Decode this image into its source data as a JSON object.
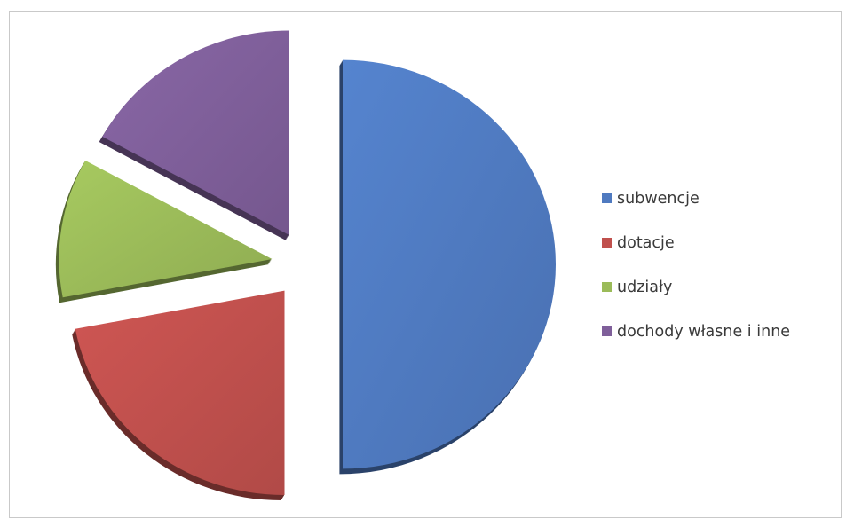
{
  "chart_data": {
    "type": "pie",
    "style": "3d-exploded",
    "categories": [
      "subwencje",
      "dotacje",
      "udziały",
      "dochody własne i inne"
    ],
    "values": [
      50,
      22,
      11,
      17
    ],
    "colors": [
      "#4f7ac0",
      "#c0504d",
      "#9bbb59",
      "#7f5f9a"
    ],
    "legend_position": "right"
  }
}
